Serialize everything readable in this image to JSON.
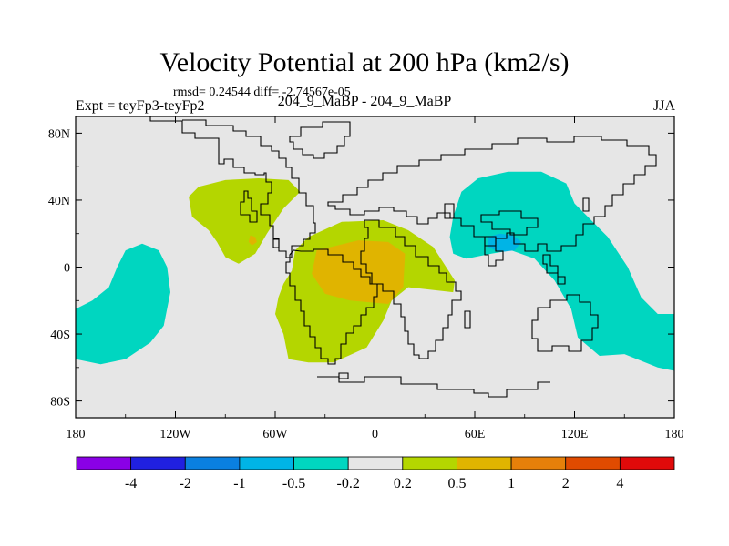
{
  "chart_data": {
    "type": "contour-map",
    "title": "Velocity Potential at 200 hPa (km2/s)",
    "stats_line": "rmsd= 0.24544  diff= -2.74567e-05",
    "left_label": "Expt = teyFp3-teyFp2",
    "center_label": "204_9_MaBP - 204_9_MaBP",
    "right_label": "JJA",
    "x_ticks": [
      {
        "value": -180,
        "label": "180"
      },
      {
        "value": -120,
        "label": "120W"
      },
      {
        "value": -60,
        "label": "60W"
      },
      {
        "value": 0,
        "label": "0"
      },
      {
        "value": 60,
        "label": "60E"
      },
      {
        "value": 120,
        "label": "120E"
      },
      {
        "value": 180,
        "label": "180"
      }
    ],
    "y_ticks": [
      {
        "value": 80,
        "label": "80N"
      },
      {
        "value": 40,
        "label": "40N"
      },
      {
        "value": 0,
        "label": "0"
      },
      {
        "value": -40,
        "label": "40S"
      },
      {
        "value": -80,
        "label": "80S"
      }
    ],
    "xlim": [
      -180,
      180
    ],
    "ylim": [
      -90,
      90
    ],
    "colorbar": {
      "colors": [
        "#8a00e6",
        "#2020e0",
        "#0a80e0",
        "#00b4e6",
        "#00d6c0",
        "#e6e6e6",
        "#b4d600",
        "#e0b400",
        "#e6800a",
        "#e04b00",
        "#e00a0a"
      ],
      "labels": [
        "-4",
        "-2",
        "-1",
        "-0.5",
        "-0.2",
        "0.2",
        "0.5",
        "1",
        "2",
        "4"
      ]
    },
    "regions": [
      {
        "name": "central-pacific-negative",
        "level": "-0.2",
        "color": "#00d6c0",
        "points": [
          [
            -180,
            -25
          ],
          [
            -170,
            -20
          ],
          [
            -160,
            -12
          ],
          [
            -155,
            0
          ],
          [
            -150,
            10
          ],
          [
            -140,
            14
          ],
          [
            -130,
            10
          ],
          [
            -125,
            0
          ],
          [
            -123,
            -15
          ],
          [
            -127,
            -35
          ],
          [
            -135,
            -45
          ],
          [
            -150,
            -55
          ],
          [
            -165,
            -58
          ],
          [
            -180,
            -55
          ]
        ]
      },
      {
        "name": "asia-negative",
        "level": "-0.2",
        "color": "#00d6c0",
        "points": [
          [
            45,
            18
          ],
          [
            47,
            30
          ],
          [
            52,
            45
          ],
          [
            62,
            53
          ],
          [
            80,
            57
          ],
          [
            100,
            57
          ],
          [
            115,
            50
          ],
          [
            120,
            38
          ],
          [
            128,
            30
          ],
          [
            140,
            18
          ],
          [
            152,
            0
          ],
          [
            160,
            -18
          ],
          [
            170,
            -28
          ],
          [
            180,
            -28
          ],
          [
            180,
            -62
          ],
          [
            170,
            -60
          ],
          [
            150,
            -52
          ],
          [
            135,
            -53
          ],
          [
            122,
            -42
          ],
          [
            118,
            -25
          ],
          [
            108,
            -8
          ],
          [
            96,
            5
          ],
          [
            82,
            10
          ],
          [
            70,
            8
          ],
          [
            55,
            5
          ],
          [
            47,
            8
          ]
        ]
      },
      {
        "name": "asia-core-negative",
        "level": "-0.5",
        "color": "#00b4e6",
        "points": [
          [
            68,
            18
          ],
          [
            75,
            20
          ],
          [
            83,
            19
          ],
          [
            88,
            15
          ],
          [
            84,
            10
          ],
          [
            75,
            9
          ],
          [
            68,
            12
          ]
        ]
      },
      {
        "name": "north-america-positive",
        "level": "0.2",
        "color": "#b4d600",
        "points": [
          [
            -112,
            42
          ],
          [
            -106,
            48
          ],
          [
            -90,
            52
          ],
          [
            -70,
            53
          ],
          [
            -52,
            52
          ],
          [
            -45,
            45
          ],
          [
            -55,
            35
          ],
          [
            -65,
            20
          ],
          [
            -72,
            8
          ],
          [
            -82,
            2
          ],
          [
            -90,
            6
          ],
          [
            -95,
            15
          ],
          [
            -100,
            22
          ],
          [
            -110,
            30
          ]
        ]
      },
      {
        "name": "north-america-core-positive",
        "level": "0.5",
        "color": "#e0b400",
        "points": [
          [
            -75,
            19
          ],
          [
            -72,
            18
          ],
          [
            -71,
            15
          ],
          [
            -74,
            13
          ],
          [
            -76,
            15
          ]
        ]
      },
      {
        "name": "atlantic-africa-positive",
        "level": "0.2",
        "color": "#b4d600",
        "points": [
          [
            -55,
            -10
          ],
          [
            -50,
            -2
          ],
          [
            -48,
            10
          ],
          [
            -40,
            18
          ],
          [
            -20,
            27
          ],
          [
            5,
            28
          ],
          [
            20,
            22
          ],
          [
            35,
            12
          ],
          [
            48,
            -8
          ],
          [
            47,
            -15
          ],
          [
            20,
            -12
          ],
          [
            10,
            -20
          ],
          [
            5,
            -32
          ],
          [
            -5,
            -48
          ],
          [
            -25,
            -57
          ],
          [
            -40,
            -57
          ],
          [
            -52,
            -55
          ],
          [
            -55,
            -40
          ],
          [
            -60,
            -28
          ],
          [
            -58,
            -18
          ]
        ]
      },
      {
        "name": "africa-core-positive",
        "level": "0.5",
        "color": "#e0b400",
        "points": [
          [
            -35,
            10
          ],
          [
            -10,
            16
          ],
          [
            8,
            15
          ],
          [
            18,
            8
          ],
          [
            17,
            -12
          ],
          [
            8,
            -22
          ],
          [
            -15,
            -20
          ],
          [
            -30,
            -16
          ],
          [
            -38,
            -4
          ]
        ]
      }
    ]
  }
}
